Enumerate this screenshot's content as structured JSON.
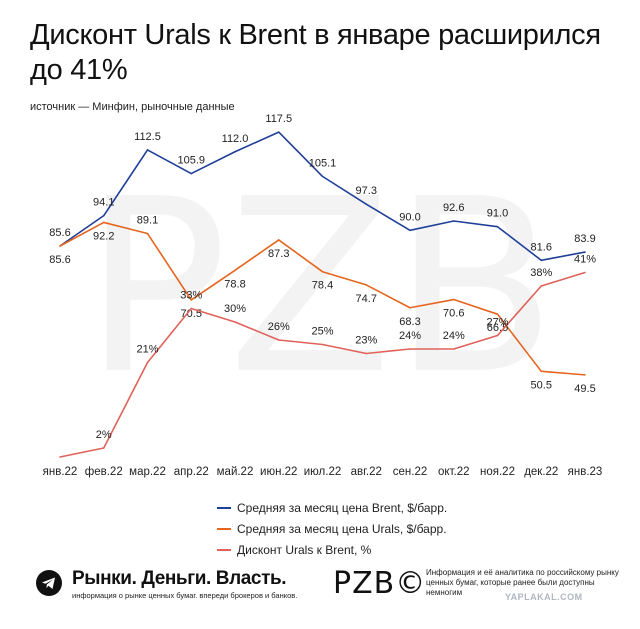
{
  "title": "Дисконт Urals к Brent в январе расширился до 41%",
  "source": "источник — Минфин, рыночные данные",
  "chart_data": {
    "type": "line",
    "categories": [
      "янв.22",
      "фев.22",
      "мар.22",
      "апр.22",
      "май.22",
      "июн.22",
      "июл.22",
      "авг.22",
      "сен.22",
      "окт.22",
      "ноя.22",
      "дек.22",
      "янв.23"
    ],
    "series": [
      {
        "name": "Средняя за месяц цена Brent, $/барр.",
        "color": "#1f3f99",
        "values": [
          85.6,
          94.1,
          112.5,
          105.9,
          112.0,
          117.5,
          105.1,
          97.3,
          90.0,
          92.6,
          91.0,
          81.6,
          83.9
        ],
        "labels": [
          "85.6",
          "94.1",
          "112.5",
          "105.9",
          "112.0",
          "117.5",
          "105.1",
          "97.3",
          "90.0",
          "92.6",
          "91.0",
          "81.6",
          "83.9"
        ]
      },
      {
        "name": "Средняя за месяц цена Urals, $/барр.",
        "color": "#e5651f",
        "values": [
          85.6,
          92.2,
          89.1,
          70.5,
          78.8,
          87.3,
          78.4,
          74.7,
          68.3,
          70.6,
          66.5,
          50.5,
          49.5
        ],
        "labels": [
          "85.6",
          "92.2",
          "89.1",
          "70.5",
          "78.8",
          "87.3",
          "78.4",
          "74.7",
          "68.3",
          "70.6",
          "66.5",
          "50.5",
          "49.5"
        ]
      },
      {
        "name": "Дисконт Urals к Brent, %",
        "color": "#e0625a",
        "values": [
          0,
          2,
          21,
          33,
          30,
          26,
          25,
          23,
          24,
          24,
          27,
          38,
          41
        ],
        "labels": [
          "",
          "2%",
          "21%",
          "33%",
          "30%",
          "26%",
          "25%",
          "23%",
          "24%",
          "24%",
          "27%",
          "38%",
          "41%"
        ]
      }
    ]
  },
  "footer": {
    "brand": "Рынки. Деньги. Власть.",
    "brand_sub": "информация о рынке ценных бумаг. впереди брокеров и банков.",
    "logo": "PZB©",
    "info": "Информация и её аналитика по российскому рынку ценных бумаг, которые ранее были доступны немногим",
    "watermark": "YAPLAKAL.COM"
  }
}
